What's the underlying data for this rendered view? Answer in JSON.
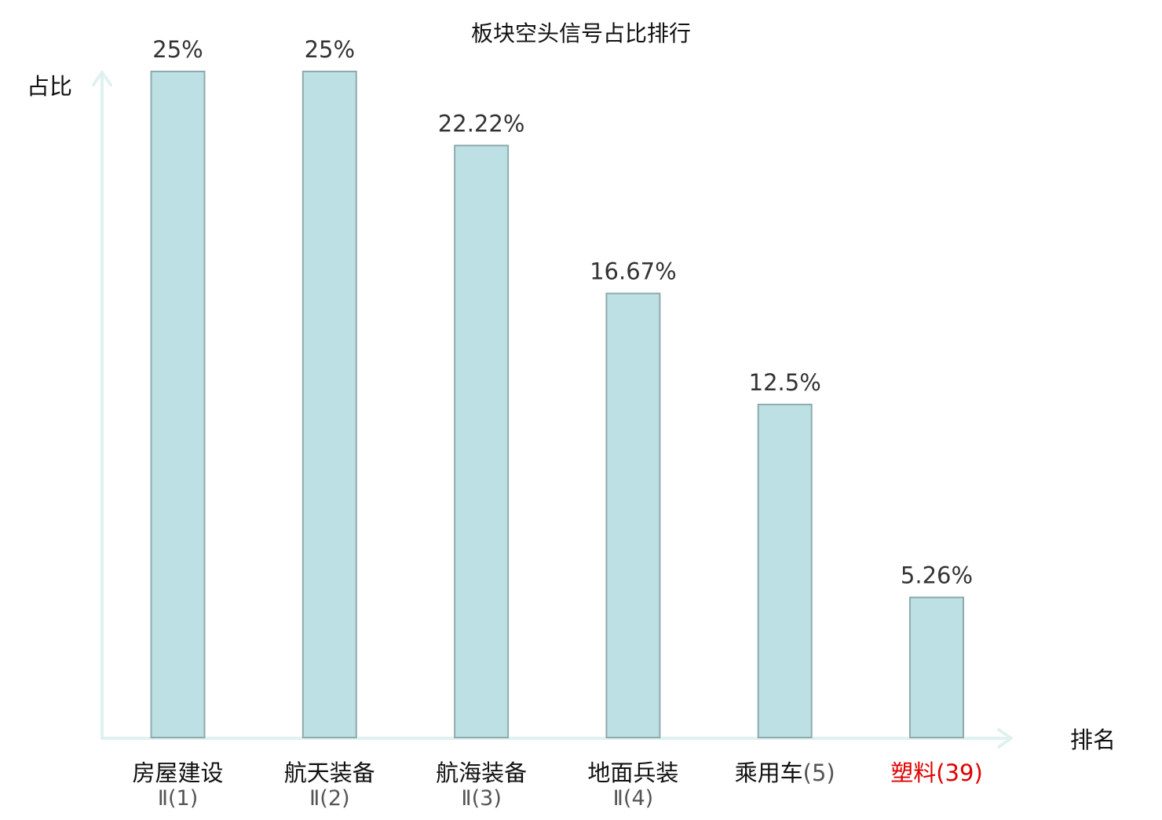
{
  "chart_data": {
    "type": "bar",
    "title": "板块空头信号占比排行",
    "ylabel": "占比",
    "xlabel": "排名",
    "ylim": [
      0,
      25
    ],
    "grid": false,
    "categories": [
      {
        "name": "房屋建设",
        "rank": "Ⅱ(1)",
        "highlight": false
      },
      {
        "name": "航天装备",
        "rank": "Ⅱ(2)",
        "highlight": false
      },
      {
        "name": "航海装备",
        "rank": "Ⅱ(3)",
        "highlight": false
      },
      {
        "name": "地面兵装",
        "rank": "Ⅱ(4)",
        "highlight": false
      },
      {
        "name": "乘用车",
        "rank": "(5)",
        "highlight": false
      },
      {
        "name": "塑料",
        "rank": "(39)",
        "highlight": true
      }
    ],
    "values": [
      25,
      25,
      22.22,
      16.67,
      12.5,
      5.26
    ],
    "value_labels": [
      "25%",
      "25%",
      "22.22%",
      "16.67%",
      "12.5%",
      "5.26%"
    ],
    "colors": {
      "bar_fill": "#bce0e3",
      "bar_stroke": "#8faaad",
      "axis": "#e0f2ef",
      "highlight": "#e00000",
      "text": "#111111"
    }
  }
}
